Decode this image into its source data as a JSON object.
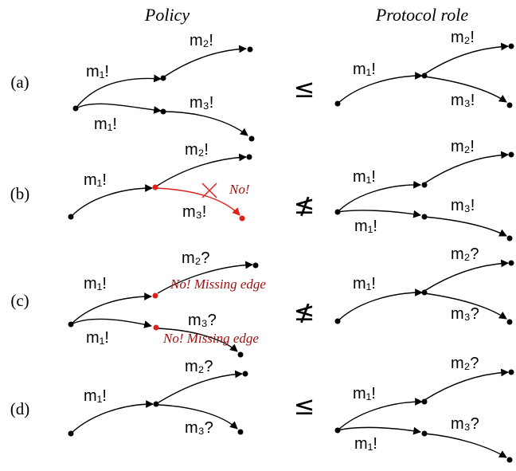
{
  "headers": {
    "policy": "Policy",
    "protocol": "Protocol role"
  },
  "rows": [
    {
      "id": "a",
      "label": "(a)",
      "relation": "≤"
    },
    {
      "id": "b",
      "label": "(b)",
      "relation": "≰"
    },
    {
      "id": "c",
      "label": "(c)",
      "relation": "≰"
    },
    {
      "id": "d",
      "label": "(d)",
      "relation": "≤"
    }
  ],
  "edge_labels": {
    "m1_send": "m₁!",
    "m2_send": "m₂!",
    "m3_send": "m₃!",
    "m2_recv": "m₂?",
    "m3_recv": "m₃?"
  },
  "notes": {
    "no": "No!",
    "missing_edge": "No! Missing edge"
  },
  "colors": {
    "black": "#000000",
    "error_red": "#e0201a",
    "note_red": "#a01010"
  }
}
